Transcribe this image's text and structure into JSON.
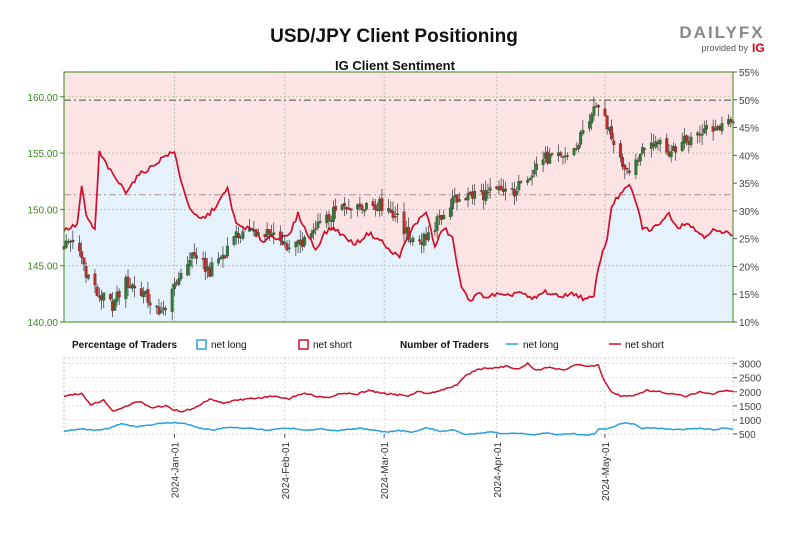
{
  "header": {
    "title": "USD/JPY Client Positioning",
    "subtitle": "IG Client Sentiment"
  },
  "logo": {
    "brand_text": "DAILYFX",
    "provided_by": "provided by",
    "ig_text": "IG",
    "brand_color": "#888888",
    "ig_color": "#e2001a"
  },
  "colors": {
    "price_up": "#2e7d32",
    "price_down": "#c62828",
    "net_long": "#2b9fd9",
    "net_short": "#d0102a",
    "short_fill": "#fce4e4",
    "long_fill": "#e6f2fb",
    "left_axis": "#3a8a1e"
  },
  "chart_data": [
    {
      "type": "candlestick",
      "name": "price-and-sentiment",
      "left_axis": {
        "ticks": [
          "140.00",
          "145.00",
          "150.00",
          "155.00",
          "160.00"
        ],
        "range": [
          140,
          162.2
        ]
      },
      "right_axis": {
        "ticks": [
          "10%",
          "15%",
          "20%",
          "25%",
          "30%",
          "35%",
          "40%",
          "45%",
          "50%",
          "55%"
        ],
        "range": [
          10,
          55
        ]
      },
      "horizontal_levels": [
        {
          "value": 159.7,
          "style": "dash-dot"
        },
        {
          "value": 151.3,
          "style": "dash-dot-light"
        }
      ],
      "price_anchors": [
        [
          0,
          146.8
        ],
        [
          5,
          147.5
        ],
        [
          10,
          144.5
        ],
        [
          15,
          142.5
        ],
        [
          22,
          141.5
        ],
        [
          28,
          143.5
        ],
        [
          34,
          143.0
        ],
        [
          40,
          141.5
        ],
        [
          46,
          140.8
        ],
        [
          52,
          144.0
        ],
        [
          58,
          146.0
        ],
        [
          66,
          144.5
        ],
        [
          74,
          146.5
        ],
        [
          80,
          148.0
        ],
        [
          88,
          148.0
        ],
        [
          96,
          147.5
        ],
        [
          104,
          146.5
        ],
        [
          110,
          147.5
        ],
        [
          116,
          148.5
        ],
        [
          124,
          150.0
        ],
        [
          132,
          150.5
        ],
        [
          140,
          150.5
        ],
        [
          146,
          150.3
        ],
        [
          150,
          149.5
        ],
        [
          156,
          147.5
        ],
        [
          162,
          147.3
        ],
        [
          168,
          148.5
        ],
        [
          174,
          150.5
        ],
        [
          180,
          151.0
        ],
        [
          186,
          151.3
        ],
        [
          192,
          151.4
        ],
        [
          198,
          151.7
        ],
        [
          204,
          151.6
        ],
        [
          210,
          153.0
        ],
        [
          216,
          154.5
        ],
        [
          222,
          154.6
        ],
        [
          228,
          154.8
        ],
        [
          232,
          155.5
        ],
        [
          236,
          157.5
        ],
        [
          240,
          158.6
        ],
        [
          244,
          159.0
        ],
        [
          246,
          157.5
        ],
        [
          250,
          155.6
        ],
        [
          254,
          153.6
        ],
        [
          258,
          154.0
        ],
        [
          262,
          155.3
        ],
        [
          266,
          155.8
        ],
        [
          270,
          156.2
        ],
        [
          274,
          155.0
        ],
        [
          278,
          155.6
        ],
        [
          282,
          156.1
        ],
        [
          286,
          156.6
        ],
        [
          290,
          157.0
        ],
        [
          294,
          157.2
        ],
        [
          298,
          157.4
        ],
        [
          303,
          157.6
        ]
      ],
      "sentiment_percent_net_long_anchors": [
        [
          0,
          26.5
        ],
        [
          6,
          27.5
        ],
        [
          8,
          34.5
        ],
        [
          10,
          29.0
        ],
        [
          14,
          26.5
        ],
        [
          16,
          40.5
        ],
        [
          22,
          36.5
        ],
        [
          28,
          33.5
        ],
        [
          34,
          36.5
        ],
        [
          40,
          38.0
        ],
        [
          46,
          40.0
        ],
        [
          50,
          40.5
        ],
        [
          54,
          34.0
        ],
        [
          58,
          29.5
        ],
        [
          62,
          28.5
        ],
        [
          66,
          29.5
        ],
        [
          70,
          31.5
        ],
        [
          74,
          34.0
        ],
        [
          78,
          27.5
        ],
        [
          82,
          27.0
        ],
        [
          86,
          26.5
        ],
        [
          90,
          24.5
        ],
        [
          94,
          25.5
        ],
        [
          98,
          25.0
        ],
        [
          102,
          25.5
        ],
        [
          106,
          29.5
        ],
        [
          110,
          26.0
        ],
        [
          114,
          23.0
        ],
        [
          118,
          26.0
        ],
        [
          122,
          27.0
        ],
        [
          128,
          25.0
        ],
        [
          132,
          24.0
        ],
        [
          138,
          26.0
        ],
        [
          144,
          24.5
        ],
        [
          148,
          22.5
        ],
        [
          152,
          22.0
        ],
        [
          158,
          27.0
        ],
        [
          164,
          30.0
        ],
        [
          168,
          23.5
        ],
        [
          172,
          27.0
        ],
        [
          176,
          25.0
        ],
        [
          180,
          16.0
        ],
        [
          184,
          14.0
        ],
        [
          188,
          15.0
        ],
        [
          192,
          14.5
        ],
        [
          196,
          15.0
        ],
        [
          200,
          14.5
        ],
        [
          206,
          15.5
        ],
        [
          212,
          14.0
        ],
        [
          218,
          15.5
        ],
        [
          224,
          14.5
        ],
        [
          228,
          15.0
        ],
        [
          232,
          15.0
        ],
        [
          236,
          14.0
        ],
        [
          240,
          14.5
        ],
        [
          242,
          20.0
        ],
        [
          244,
          22.5
        ],
        [
          246,
          25.0
        ],
        [
          248,
          31.0
        ],
        [
          252,
          33.0
        ],
        [
          256,
          34.5
        ],
        [
          258,
          33.0
        ],
        [
          262,
          27.0
        ],
        [
          266,
          26.5
        ],
        [
          270,
          28.0
        ],
        [
          274,
          29.5
        ],
        [
          278,
          27.0
        ],
        [
          282,
          28.0
        ],
        [
          286,
          26.5
        ],
        [
          290,
          25.5
        ],
        [
          294,
          26.5
        ],
        [
          298,
          26.0
        ],
        [
          303,
          26.0
        ]
      ]
    },
    {
      "type": "line",
      "name": "number-of-traders",
      "y_ticks": [
        "500",
        "1000",
        "1500",
        "2000",
        "2500",
        "3000"
      ],
      "y_range": [
        500,
        3200
      ],
      "x_tick_labels": [
        "2024-Jan-01",
        "2024-Feb-01",
        "2024-Mar-01",
        "2024-Apr-01",
        "2024-May-01"
      ],
      "x_tick_positions": [
        50,
        100,
        145,
        196,
        245
      ],
      "series": [
        {
          "name": "net short",
          "color": "#d0102a",
          "anchors": [
            [
              0,
              1850
            ],
            [
              8,
              1950
            ],
            [
              12,
              1550
            ],
            [
              18,
              1700
            ],
            [
              22,
              1300
            ],
            [
              28,
              1500
            ],
            [
              34,
              1650
            ],
            [
              40,
              1450
            ],
            [
              46,
              1500
            ],
            [
              50,
              1350
            ],
            [
              54,
              1300
            ],
            [
              60,
              1450
            ],
            [
              66,
              1750
            ],
            [
              72,
              1600
            ],
            [
              78,
              1700
            ],
            [
              84,
              1750
            ],
            [
              90,
              1800
            ],
            [
              96,
              1850
            ],
            [
              102,
              1750
            ],
            [
              108,
              1950
            ],
            [
              114,
              1850
            ],
            [
              120,
              1800
            ],
            [
              126,
              1950
            ],
            [
              132,
              1900
            ],
            [
              138,
              2050
            ],
            [
              144,
              1950
            ],
            [
              150,
              1900
            ],
            [
              156,
              1850
            ],
            [
              160,
              2000
            ],
            [
              166,
              1950
            ],
            [
              172,
              2100
            ],
            [
              178,
              2250
            ],
            [
              182,
              2600
            ],
            [
              188,
              2800
            ],
            [
              194,
              2850
            ],
            [
              200,
              2900
            ],
            [
              206,
              2800
            ],
            [
              210,
              3000
            ],
            [
              214,
              2750
            ],
            [
              220,
              2900
            ],
            [
              226,
              2750
            ],
            [
              232,
              2950
            ],
            [
              238,
              2900
            ],
            [
              242,
              2950
            ],
            [
              244,
              2500
            ],
            [
              248,
              2000
            ],
            [
              252,
              1850
            ],
            [
              258,
              1850
            ],
            [
              264,
              2050
            ],
            [
              270,
              2000
            ],
            [
              276,
              1900
            ],
            [
              282,
              1850
            ],
            [
              288,
              2000
            ],
            [
              294,
              1900
            ],
            [
              298,
              2050
            ],
            [
              303,
              2000
            ]
          ]
        },
        {
          "name": "net long",
          "color": "#2b9fd9",
          "anchors": [
            [
              0,
              600
            ],
            [
              8,
              680
            ],
            [
              14,
              630
            ],
            [
              20,
              700
            ],
            [
              26,
              880
            ],
            [
              32,
              760
            ],
            [
              38,
              800
            ],
            [
              44,
              880
            ],
            [
              50,
              900
            ],
            [
              56,
              850
            ],
            [
              62,
              700
            ],
            [
              68,
              640
            ],
            [
              74,
              750
            ],
            [
              80,
              700
            ],
            [
              86,
              690
            ],
            [
              92,
              640
            ],
            [
              98,
              700
            ],
            [
              104,
              700
            ],
            [
              110,
              630
            ],
            [
              116,
              680
            ],
            [
              122,
              630
            ],
            [
              128,
              650
            ],
            [
              134,
              700
            ],
            [
              140,
              640
            ],
            [
              146,
              560
            ],
            [
              152,
              630
            ],
            [
              158,
              560
            ],
            [
              164,
              740
            ],
            [
              170,
              600
            ],
            [
              176,
              650
            ],
            [
              182,
              480
            ],
            [
              188,
              520
            ],
            [
              194,
              570
            ],
            [
              200,
              500
            ],
            [
              206,
              520
            ],
            [
              212,
              460
            ],
            [
              218,
              540
            ],
            [
              224,
              480
            ],
            [
              230,
              520
            ],
            [
              236,
              460
            ],
            [
              240,
              500
            ],
            [
              242,
              650
            ],
            [
              246,
              700
            ],
            [
              250,
              800
            ],
            [
              254,
              900
            ],
            [
              258,
              860
            ],
            [
              262,
              700
            ],
            [
              266,
              720
            ],
            [
              270,
              700
            ],
            [
              276,
              650
            ],
            [
              282,
              680
            ],
            [
              288,
              700
            ],
            [
              294,
              650
            ],
            [
              298,
              700
            ],
            [
              303,
              680
            ]
          ]
        }
      ]
    }
  ],
  "legend": {
    "percentage_title": "Percentage of Traders",
    "pct_net_long": "net long",
    "pct_net_short": "net short",
    "number_title": "Number of Traders",
    "num_net_long": "net long",
    "num_net_short": "net short"
  }
}
